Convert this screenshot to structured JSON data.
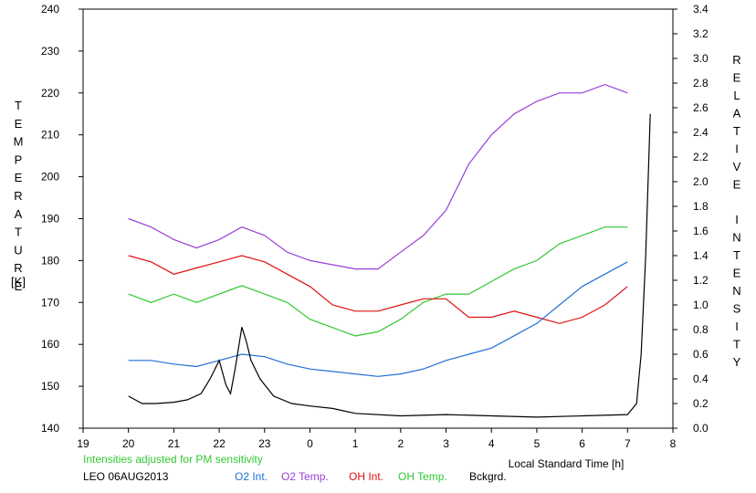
{
  "chart_data": {
    "type": "line",
    "ylabel_left": "TEMPERATURE",
    "ylabel_left_unit": "[K]",
    "ylabel_right": "RELATIVE INTENSITY",
    "xlabel": "Local Standard Time [h]",
    "note": "Intensities adjusted for PM sensitivity",
    "caption": "LEO 06AUG2013",
    "x_ticks": [
      "19",
      "20",
      "21",
      "22",
      "23",
      "0",
      "1",
      "2",
      "3",
      "4",
      "5",
      "6",
      "7",
      "8"
    ],
    "x_range": [
      19,
      32
    ],
    "ylim_left": [
      140,
      240
    ],
    "y_ticks_left": [
      140,
      150,
      160,
      170,
      180,
      190,
      200,
      210,
      220,
      230,
      240
    ],
    "ylim_right": [
      0,
      3.4
    ],
    "y_ticks_right": [
      "0.0",
      "0.2",
      "0.4",
      "0.6",
      "0.8",
      "1.0",
      "1.2",
      "1.4",
      "1.6",
      "1.8",
      "2.0",
      "2.2",
      "2.4",
      "2.6",
      "2.8",
      "3.0",
      "3.2",
      "3.4"
    ],
    "series": [
      {
        "name": "O2 Int.",
        "axis": "right",
        "color": "#1f6fd6",
        "x": [
          20.0,
          20.5,
          21.0,
          21.5,
          22.0,
          22.5,
          23.0,
          23.5,
          24.0,
          24.5,
          25.0,
          25.5,
          26.0,
          26.5,
          27.0,
          27.5,
          28.0,
          28.5,
          29.0,
          29.5,
          30.0,
          30.5,
          31.0
        ],
        "y": [
          0.55,
          0.55,
          0.52,
          0.5,
          0.55,
          0.6,
          0.58,
          0.52,
          0.48,
          0.46,
          0.44,
          0.42,
          0.44,
          0.48,
          0.55,
          0.6,
          0.65,
          0.75,
          0.85,
          1.0,
          1.15,
          1.25,
          1.35
        ]
      },
      {
        "name": "O2 Temp.",
        "axis": "left",
        "color": "#9b3fd6",
        "x": [
          20.0,
          20.5,
          21.0,
          21.5,
          22.0,
          22.5,
          23.0,
          23.5,
          24.0,
          24.5,
          25.0,
          25.5,
          26.0,
          26.5,
          27.0,
          27.5,
          28.0,
          28.5,
          29.0,
          29.5,
          30.0,
          30.5,
          31.0
        ],
        "y": [
          190,
          188,
          185,
          183,
          185,
          188,
          186,
          182,
          180,
          179,
          178,
          178,
          182,
          186,
          192,
          203,
          210,
          215,
          218,
          220,
          220,
          222,
          220
        ]
      },
      {
        "name": "OH Int.",
        "axis": "right",
        "color": "#e01010",
        "x": [
          20.0,
          20.5,
          21.0,
          21.5,
          22.0,
          22.5,
          23.0,
          23.5,
          24.0,
          24.5,
          25.0,
          25.5,
          26.0,
          26.5,
          27.0,
          27.5,
          28.0,
          28.5,
          29.0,
          29.5,
          30.0,
          30.5,
          31.0
        ],
        "y": [
          1.4,
          1.35,
          1.25,
          1.3,
          1.35,
          1.4,
          1.35,
          1.25,
          1.15,
          1.0,
          0.95,
          0.95,
          1.0,
          1.05,
          1.05,
          0.9,
          0.9,
          0.95,
          0.9,
          0.85,
          0.9,
          1.0,
          1.15
        ]
      },
      {
        "name": "OH Temp.",
        "axis": "left",
        "color": "#32c832",
        "x": [
          20.0,
          20.5,
          21.0,
          21.5,
          22.0,
          22.5,
          23.0,
          23.5,
          24.0,
          24.5,
          25.0,
          25.5,
          26.0,
          26.5,
          27.0,
          27.5,
          28.0,
          28.5,
          29.0,
          29.5,
          30.0,
          30.5,
          31.0
        ],
        "y": [
          172,
          170,
          172,
          170,
          172,
          174,
          172,
          170,
          166,
          164,
          162,
          163,
          166,
          170,
          172,
          172,
          175,
          178,
          180,
          184,
          186,
          188,
          188
        ]
      },
      {
        "name": "Bckgrd.",
        "axis": "right",
        "color": "#000000",
        "x": [
          20.0,
          20.3,
          20.6,
          21.0,
          21.3,
          21.6,
          21.8,
          22.0,
          22.15,
          22.25,
          22.35,
          22.5,
          22.6,
          22.7,
          22.9,
          23.2,
          23.6,
          24.0,
          24.5,
          25.0,
          26.0,
          27.0,
          28.0,
          29.0,
          30.0,
          31.0,
          31.2,
          31.3,
          31.4,
          31.5
        ],
        "y": [
          0.26,
          0.2,
          0.2,
          0.21,
          0.23,
          0.28,
          0.4,
          0.55,
          0.35,
          0.28,
          0.48,
          0.82,
          0.7,
          0.55,
          0.4,
          0.26,
          0.2,
          0.18,
          0.16,
          0.12,
          0.1,
          0.11,
          0.1,
          0.09,
          0.1,
          0.11,
          0.2,
          0.6,
          1.4,
          2.55
        ]
      }
    ],
    "legend_placement": "bottom",
    "grid": false
  }
}
